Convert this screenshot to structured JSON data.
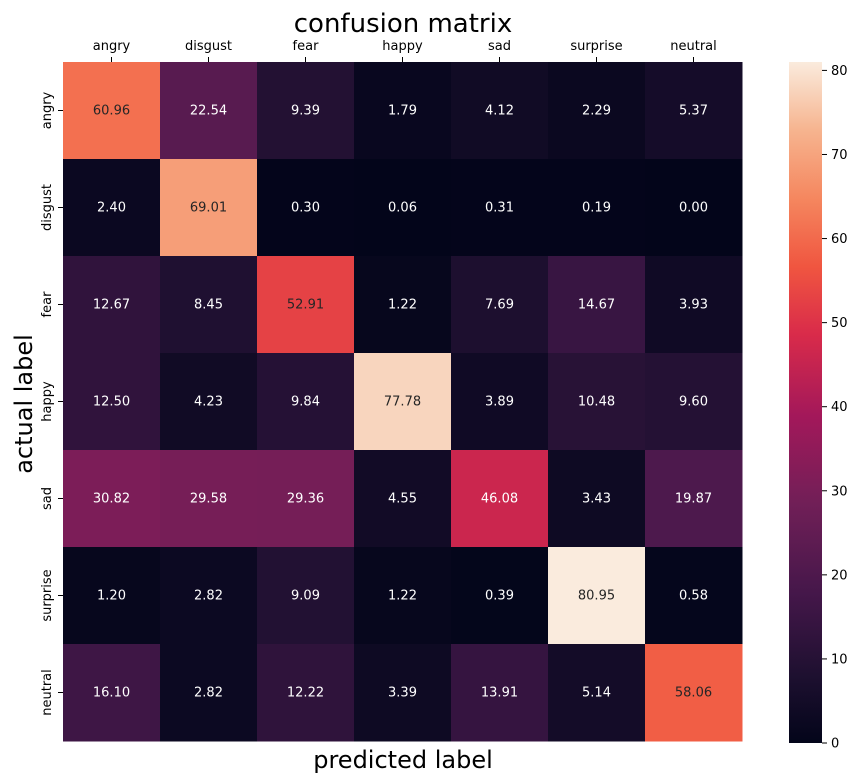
{
  "chart_data": {
    "type": "heatmap",
    "title": "confusion matrix",
    "xlabel": "predicted label",
    "ylabel": "actual label",
    "x_categories": [
      "angry",
      "disgust",
      "fear",
      "happy",
      "sad",
      "surprise",
      "neutral"
    ],
    "y_categories": [
      "angry",
      "disgust",
      "fear",
      "happy",
      "sad",
      "surprise",
      "neutral"
    ],
    "values": [
      [
        60.96,
        22.54,
        9.39,
        1.79,
        4.12,
        2.29,
        5.37
      ],
      [
        2.4,
        69.01,
        0.3,
        0.06,
        0.31,
        0.19,
        0.0
      ],
      [
        12.67,
        8.45,
        52.91,
        1.22,
        7.69,
        14.67,
        3.93
      ],
      [
        12.5,
        4.23,
        9.84,
        77.78,
        3.89,
        10.48,
        9.6
      ],
      [
        30.82,
        29.58,
        29.36,
        4.55,
        46.08,
        3.43,
        19.87
      ],
      [
        1.2,
        2.82,
        9.09,
        1.22,
        0.39,
        80.95,
        0.58
      ],
      [
        16.1,
        2.82,
        12.22,
        3.39,
        13.91,
        5.14,
        58.06
      ]
    ],
    "value_format": "fixed-2",
    "x_axis_position": "top",
    "colormap": "rocket",
    "colorbar": {
      "range": [
        0,
        81
      ],
      "ticks": [
        0,
        10,
        20,
        30,
        40,
        50,
        60,
        70,
        80
      ],
      "position": "right"
    },
    "grid": false
  }
}
